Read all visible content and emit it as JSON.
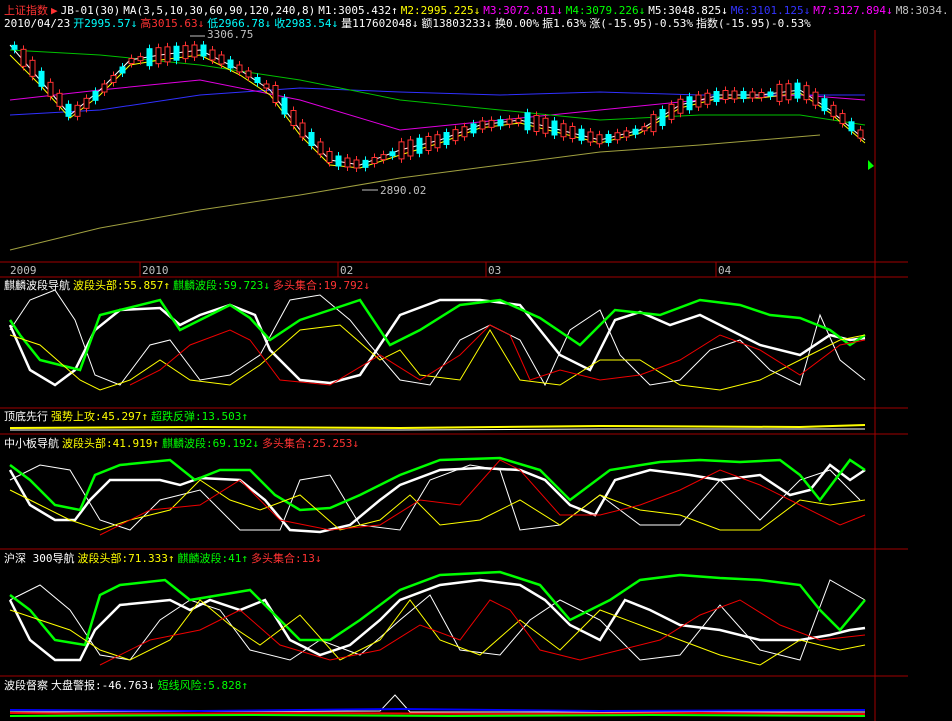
{
  "header": {
    "symbol": "上证指数",
    "indicator": "JB-01(30)",
    "ma": "MA(3,5,10,30,60,90,120,240,8)",
    "m": [
      "M1:3005.432↑",
      "M2:2995.225↓",
      "M3:3072.811↓",
      "M4:3079.226↓",
      "M5:3048.825↓",
      "M6:3101.125↓",
      "M7:3127.894↓",
      "M8:3034."
    ],
    "date": "2010/04/23",
    "quote": [
      "开2995.57↓",
      "高3015.63↓",
      "低2966.78↓",
      "收2983.54↓",
      "量117602048↓",
      "额13803233↓",
      "换0.00%",
      "振1.63%",
      "涨(-15.95)-0.53%",
      "指数(-15.95)-0.53%"
    ]
  },
  "annotations": {
    "high": "3306.75",
    "low": "2890.02"
  },
  "x_axis": [
    "2009",
    "2010",
    "02",
    "03",
    "04"
  ],
  "panels": [
    {
      "name": "麒麟波段导航",
      "items": [
        "波段头部:55.857↑",
        "麒麟波段:59.723↓",
        "多头集合:19.792↓"
      ]
    },
    {
      "name": "顶底先行",
      "items": [
        "强势上攻:45.297↑",
        "超跌反弹:13.503↑"
      ]
    },
    {
      "name": "中小板导航",
      "items": [
        "波段头部:41.919↑",
        "麒麟波段:69.192↓",
        "多头集合:25.253↓"
      ]
    },
    {
      "name": "沪深 300导航",
      "items": [
        "波段头部:71.333↑",
        "麒麟波段:41↑",
        "多头集合:13↓"
      ]
    },
    {
      "name": "波段督察",
      "items": [
        "大盘警报:-46.763↓",
        "短线风险:5.828↑"
      ]
    }
  ]
}
